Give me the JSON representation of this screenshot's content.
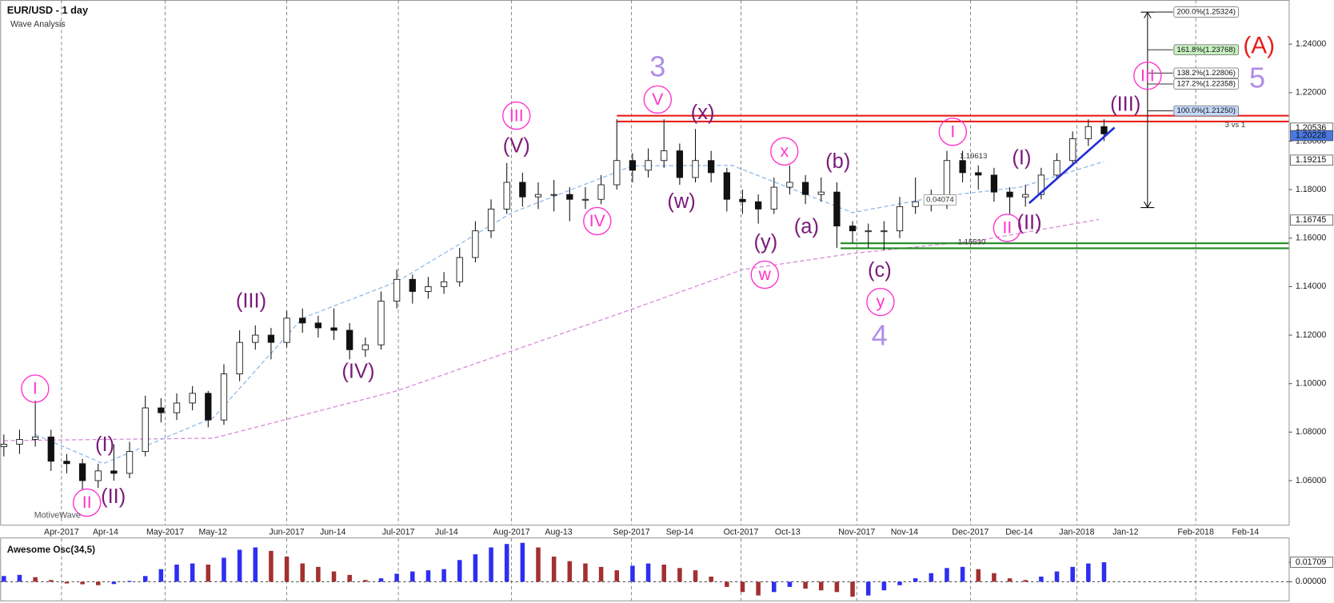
{
  "header": {
    "title": "EUR/USD - 1 day",
    "subtitle": "Wave Analysis",
    "watermark": "MotiveWave"
  },
  "chart_data": [
    {
      "type": "candlestick",
      "x": [
        -11,
        -8,
        -5,
        -2,
        1,
        4,
        7,
        10,
        13,
        16,
        19,
        22,
        25,
        28,
        31,
        34,
        37,
        40,
        43,
        46,
        49,
        52,
        55,
        58,
        61,
        64,
        67,
        70,
        73,
        76,
        79,
        82,
        85,
        88,
        91,
        94,
        97,
        100,
        103,
        106,
        109,
        112,
        115,
        118,
        121,
        124,
        127,
        130,
        133,
        136,
        139,
        142,
        145,
        148,
        151,
        154,
        157,
        160,
        163,
        166,
        169,
        172,
        175,
        178,
        181,
        184,
        187,
        190,
        193,
        196,
        199
      ],
      "ohlc": [
        [
          1.074,
          1.079,
          1.07,
          1.075
        ],
        [
          1.075,
          1.081,
          1.071,
          1.077
        ],
        [
          1.077,
          1.093,
          1.074,
          1.078
        ],
        [
          1.078,
          1.081,
          1.064,
          1.068
        ],
        [
          1.068,
          1.071,
          1.063,
          1.067
        ],
        [
          1.067,
          1.069,
          1.056,
          1.06
        ],
        [
          1.06,
          1.067,
          1.057,
          1.064
        ],
        [
          1.064,
          1.075,
          1.06,
          1.063
        ],
        [
          1.063,
          1.076,
          1.061,
          1.072
        ],
        [
          1.072,
          1.095,
          1.07,
          1.09
        ],
        [
          1.09,
          1.094,
          1.084,
          1.088
        ],
        [
          1.088,
          1.096,
          1.085,
          1.092
        ],
        [
          1.092,
          1.099,
          1.089,
          1.096
        ],
        [
          1.096,
          1.097,
          1.082,
          1.085
        ],
        [
          1.085,
          1.108,
          1.083,
          1.104
        ],
        [
          1.104,
          1.122,
          1.101,
          1.117
        ],
        [
          1.117,
          1.124,
          1.114,
          1.12
        ],
        [
          1.12,
          1.123,
          1.11,
          1.117
        ],
        [
          1.117,
          1.13,
          1.115,
          1.127
        ],
        [
          1.127,
          1.131,
          1.121,
          1.125
        ],
        [
          1.125,
          1.128,
          1.119,
          1.123
        ],
        [
          1.123,
          1.131,
          1.118,
          1.122
        ],
        [
          1.122,
          1.125,
          1.11,
          1.114
        ],
        [
          1.114,
          1.119,
          1.111,
          1.116
        ],
        [
          1.116,
          1.138,
          1.114,
          1.134
        ],
        [
          1.134,
          1.147,
          1.131,
          1.143
        ],
        [
          1.143,
          1.145,
          1.133,
          1.138
        ],
        [
          1.138,
          1.144,
          1.135,
          1.14
        ],
        [
          1.14,
          1.146,
          1.137,
          1.142
        ],
        [
          1.142,
          1.156,
          1.14,
          1.152
        ],
        [
          1.152,
          1.167,
          1.15,
          1.163
        ],
        [
          1.163,
          1.176,
          1.16,
          1.172
        ],
        [
          1.172,
          1.191,
          1.17,
          1.183
        ],
        [
          1.183,
          1.187,
          1.173,
          1.177
        ],
        [
          1.177,
          1.183,
          1.172,
          1.178
        ],
        [
          1.178,
          1.184,
          1.171,
          1.178
        ],
        [
          1.178,
          1.181,
          1.167,
          1.176
        ],
        [
          1.176,
          1.181,
          1.172,
          1.176
        ],
        [
          1.176,
          1.186,
          1.174,
          1.182
        ],
        [
          1.182,
          1.209,
          1.18,
          1.192
        ],
        [
          1.192,
          1.195,
          1.183,
          1.188
        ],
        [
          1.188,
          1.197,
          1.185,
          1.192
        ],
        [
          1.192,
          1.209,
          1.189,
          1.196
        ],
        [
          1.196,
          1.199,
          1.182,
          1.185
        ],
        [
          1.185,
          1.205,
          1.183,
          1.192
        ],
        [
          1.192,
          1.196,
          1.183,
          1.187
        ],
        [
          1.187,
          1.189,
          1.171,
          1.176
        ],
        [
          1.176,
          1.18,
          1.17,
          1.175
        ],
        [
          1.175,
          1.178,
          1.166,
          1.172
        ],
        [
          1.172,
          1.185,
          1.17,
          1.181
        ],
        [
          1.181,
          1.19,
          1.178,
          1.183
        ],
        [
          1.183,
          1.186,
          1.174,
          1.178
        ],
        [
          1.178,
          1.185,
          1.175,
          1.179
        ],
        [
          1.179,
          1.183,
          1.156,
          1.165
        ],
        [
          1.165,
          1.167,
          1.158,
          1.163
        ],
        [
          1.163,
          1.166,
          1.156,
          1.163
        ],
        [
          1.163,
          1.167,
          1.155,
          1.163
        ],
        [
          1.163,
          1.177,
          1.16,
          1.173
        ],
        [
          1.173,
          1.185,
          1.17,
          1.175
        ],
        [
          1.175,
          1.18,
          1.171,
          1.175
        ],
        [
          1.175,
          1.196,
          1.172,
          1.192
        ],
        [
          1.192,
          1.196,
          1.183,
          1.187
        ],
        [
          1.187,
          1.19,
          1.18,
          1.186
        ],
        [
          1.186,
          1.189,
          1.175,
          1.179
        ],
        [
          1.179,
          1.181,
          1.17,
          1.177
        ],
        [
          1.177,
          1.182,
          1.173,
          1.178
        ],
        [
          1.178,
          1.189,
          1.176,
          1.186
        ],
        [
          1.186,
          1.195,
          1.184,
          1.192
        ],
        [
          1.192,
          1.204,
          1.19,
          1.201
        ],
        [
          1.201,
          1.209,
          1.198,
          1.206
        ],
        [
          1.206,
          1.209,
          1.2,
          1.203
        ]
      ],
      "xlim": [
        -11.7,
        234.25
      ],
      "ylim": [
        1.0418,
        1.2582
      ],
      "xticks": [
        {
          "value": 0,
          "label": "Apr-2017"
        },
        {
          "value": 8.4,
          "label": "Apr-14"
        },
        {
          "value": 19.8,
          "label": "May-2017"
        },
        {
          "value": 28.9,
          "label": "May-12"
        },
        {
          "value": 43.0,
          "label": "Jun-2017"
        },
        {
          "value": 51.8,
          "label": "Jun-14"
        },
        {
          "value": 64.3,
          "label": "Jul-2017"
        },
        {
          "value": 73.5,
          "label": "Jul-14"
        },
        {
          "value": 85.9,
          "label": "Aug-2017"
        },
        {
          "value": 94.9,
          "label": "Aug-13"
        },
        {
          "value": 108.8,
          "label": "Sep-2017"
        },
        {
          "value": 118.0,
          "label": "Sep-14"
        },
        {
          "value": 129.7,
          "label": "Oct-2017"
        },
        {
          "value": 138.6,
          "label": "Oct-13"
        },
        {
          "value": 151.8,
          "label": "Nov-2017"
        },
        {
          "value": 160.9,
          "label": "Nov-14"
        },
        {
          "value": 173.5,
          "label": "Dec-2017"
        },
        {
          "value": 182.8,
          "label": "Dec-14"
        },
        {
          "value": 193.8,
          "label": "Jan-2018"
        },
        {
          "value": 203.1,
          "label": "Jan-12"
        },
        {
          "value": 216.5,
          "label": "Feb-2018"
        },
        {
          "value": 226.0,
          "label": "Feb-14"
        }
      ],
      "yticks": [
        {
          "value": 1.06,
          "label": "1.06000"
        },
        {
          "value": 1.08,
          "label": "1.08000"
        },
        {
          "value": 1.1,
          "label": "1.10000"
        },
        {
          "value": 1.12,
          "label": "1.12000"
        },
        {
          "value": 1.14,
          "label": "1.14000"
        },
        {
          "value": 1.16,
          "label": "1.16000"
        },
        {
          "value": 1.18,
          "label": "1.18000"
        },
        {
          "value": 1.2,
          "label": "1.20000"
        },
        {
          "value": 1.22,
          "label": "1.22000"
        },
        {
          "value": 1.24,
          "label": "1.24000"
        }
      ],
      "grid": true,
      "up_color": "#ffffff",
      "down_color": "#111111",
      "series": [
        {
          "color": "#d88ad8",
          "x": [
            -11,
            29,
            64,
            108,
            130,
            151,
            175,
            198
          ],
          "values": [
            1.0765,
            1.0775,
            1.097,
            1.13,
            1.147,
            1.1537,
            1.159,
            1.1677
          ]
        },
        {
          "color": "#8fb8ea",
          "x": [
            -5,
            8,
            29,
            46,
            64,
            86,
            109,
            128,
            151,
            167,
            183,
            199
          ],
          "values": [
            1.079,
            1.067,
            1.086,
            1.127,
            1.142,
            1.1705,
            1.1898,
            1.19,
            1.1705,
            1.177,
            1.181,
            1.1916
          ]
        }
      ],
      "hlines": [
        {
          "value": 1.2105,
          "x0": 106,
          "color": "#e8201c"
        },
        {
          "value": 1.2081,
          "x0": 106,
          "color": "#e8201c"
        },
        {
          "value": 1.1579,
          "x0": 148.7,
          "color": "#1f8a1f"
        },
        {
          "value": 1.1558,
          "x0": 148.7,
          "color": "#1f8a1f"
        }
      ],
      "trendline": {
        "x": [
          184.7,
          201
        ],
        "values": [
          1.1744,
          1.2056
        ],
        "color": "#1f2fd6"
      },
      "fib": {
        "x": 207.3,
        "range": [
          1.1726,
          1.2532
        ],
        "levels": [
          {
            "value": 1.25324,
            "label": "200.0%(1.25324)",
            "color": "#ffffff"
          },
          {
            "value": 1.23768,
            "label": "161.8%(1.23768)",
            "color": "#c8f0c0"
          },
          {
            "value": 1.22806,
            "label": "138.2%(1.22806)",
            "color": "#ffffff"
          },
          {
            "value": 1.22358,
            "label": "127.2%(1.22358)",
            "color": "#ffffff"
          },
          {
            "value": 1.2125,
            "label": "100.0%(1.21250)",
            "color": "#c4d8f8"
          }
        ]
      },
      "price_tags": [
        {
          "value": 1.20536,
          "label": "1.20536",
          "color": "#ffffff"
        },
        {
          "value": 1.20228,
          "label": "1.20228",
          "color": "#4a78e0"
        },
        {
          "value": 1.19215,
          "label": "1.19215",
          "color": "#ffffff"
        },
        {
          "value": 1.16745,
          "label": "1.16745",
          "color": "#ffffff"
        }
      ],
      "annotations": [
        "I",
        "II",
        "(I)",
        "(II)",
        "(III)",
        "(IV)",
        "III",
        "(V)",
        "IV",
        "3",
        "V",
        "(x)",
        "(w)",
        "x",
        "(b)",
        "(a)",
        "(y)",
        "w",
        "(c)",
        "y",
        "4",
        "I",
        "(I)",
        "II",
        "(II)",
        "(III)",
        "III",
        "(A)",
        "5"
      ],
      "notes": [
        "1.19613",
        "0.04074",
        "1.15530",
        "3 vs 1"
      ]
    },
    {
      "type": "bar",
      "title": "Awesome Osc(34,5)",
      "x": [
        -11,
        -8,
        -5,
        -2,
        1,
        4,
        7,
        10,
        13,
        16,
        19,
        22,
        25,
        28,
        31,
        34,
        37,
        40,
        43,
        46,
        49,
        52,
        55,
        58,
        61,
        64,
        67,
        70,
        73,
        76,
        79,
        82,
        85,
        88,
        91,
        94,
        97,
        100,
        103,
        106,
        109,
        112,
        115,
        118,
        121,
        124,
        127,
        130,
        133,
        136,
        139,
        142,
        145,
        148,
        151,
        154,
        157,
        160,
        163,
        166,
        169,
        172,
        175,
        178,
        181,
        184,
        187,
        190,
        193,
        196,
        199
      ],
      "values": [
        0.005,
        0.006,
        0.004,
        0.0015,
        -0.0015,
        -0.0022,
        -0.003,
        -0.002,
        0.0007,
        0.005,
        0.011,
        0.015,
        0.016,
        0.015,
        0.021,
        0.028,
        0.03,
        0.027,
        0.022,
        0.016,
        0.013,
        0.009,
        0.006,
        0.0015,
        0.003,
        0.007,
        0.009,
        0.01,
        0.011,
        0.019,
        0.024,
        0.03,
        0.033,
        0.034,
        0.03,
        0.022,
        0.018,
        0.016,
        0.013,
        0.01,
        0.014,
        0.016,
        0.015,
        0.012,
        0.01,
        0.0045,
        -0.0045,
        -0.009,
        -0.012,
        -0.009,
        -0.0045,
        -0.006,
        -0.0075,
        -0.009,
        -0.013,
        -0.012,
        -0.0075,
        -0.003,
        0.003,
        0.0075,
        0.012,
        0.013,
        0.011,
        0.0075,
        0.003,
        0.0015,
        0.0045,
        0.009,
        0.013,
        0.016,
        0.017
      ],
      "xlim": [
        -11.7,
        234.25
      ],
      "ylim": [
        -0.0156,
        0.0357
      ],
      "yticks": [
        {
          "value": 0.01709,
          "label": "0.01709"
        },
        {
          "value": 0,
          "label": "0.00000"
        }
      ],
      "up_color": "#2e2ef0",
      "down_color": "#a33030"
    }
  ]
}
